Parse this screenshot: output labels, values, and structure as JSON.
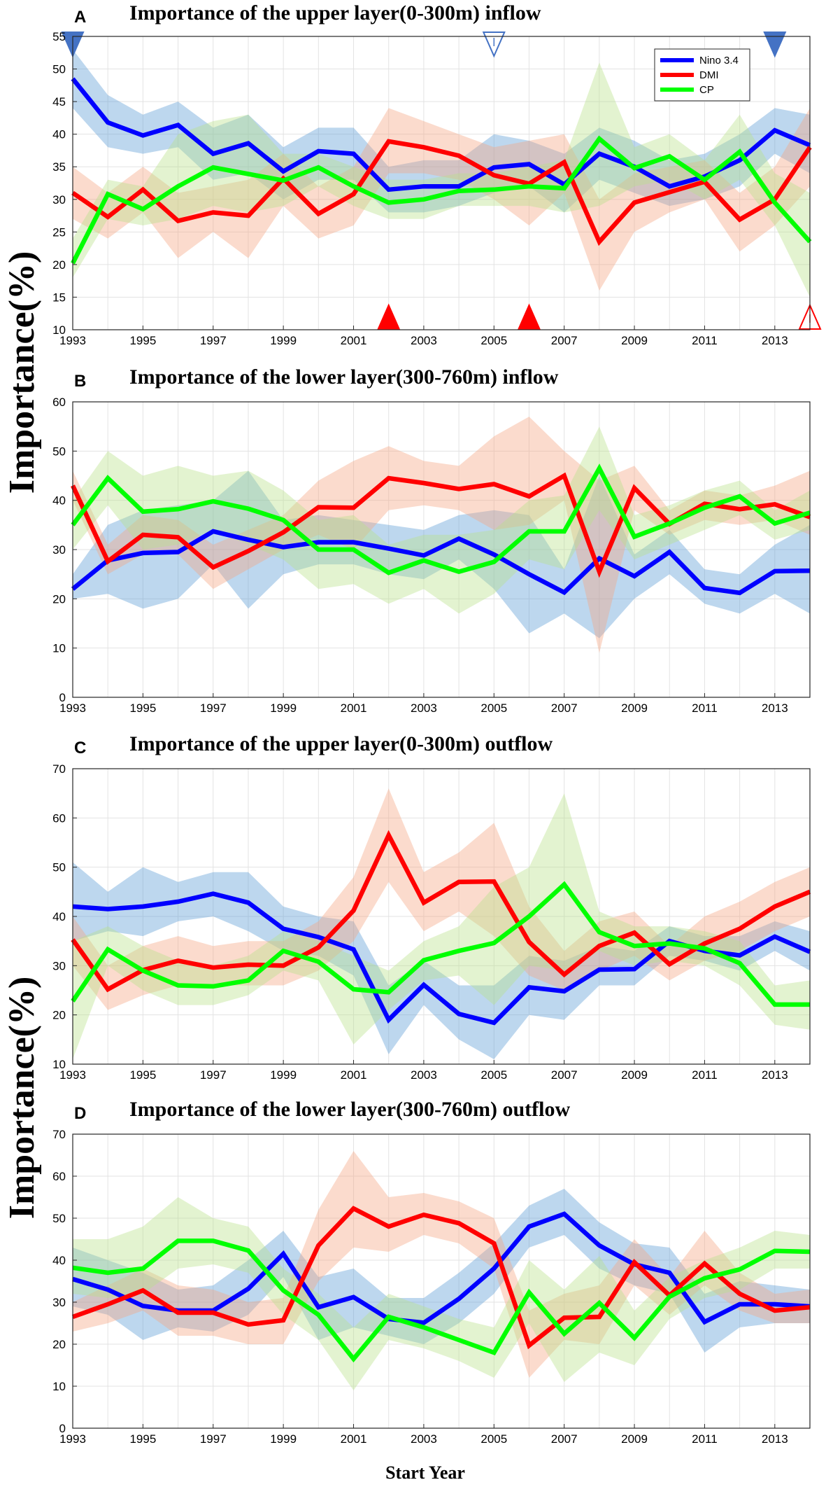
{
  "figure": {
    "xlabel": "Start Year",
    "ylabel": "Importance(%)"
  },
  "legend": [
    {
      "name": "Nino 3.4",
      "color": "#0000ff"
    },
    {
      "name": "DMI",
      "color": "#ff0000"
    },
    {
      "name": "CP",
      "color": "#00ff00"
    }
  ],
  "colors": {
    "nino": "#0000ff",
    "dmi": "#ff0000",
    "cp": "#00ff00",
    "nino_band": "#5b9bd5",
    "dmi_band": "#f4a582",
    "cp_band": "#b8e08a",
    "marker_blue": "#4472c4",
    "marker_red": "#ff0000"
  },
  "chart_data": [
    {
      "panel": "A",
      "type": "line",
      "title": "Importance of  the upper layer(0-300m) inflow",
      "x": [
        1993,
        1994,
        1995,
        1996,
        1997,
        1998,
        1999,
        2000,
        2001,
        2002,
        2003,
        2004,
        2005,
        2006,
        2007,
        2008,
        2009,
        2010,
        2011,
        2012,
        2013,
        2014
      ],
      "xticks": [
        1993,
        1995,
        1997,
        1999,
        2001,
        2003,
        2005,
        2007,
        2009,
        2011,
        2013
      ],
      "ylim": [
        10,
        55
      ],
      "yticks": [
        10,
        15,
        20,
        25,
        30,
        35,
        40,
        45,
        50,
        55
      ],
      "series": [
        {
          "name": "Nino 3.4",
          "values": [
            48.5,
            41.8,
            39.8,
            41.4,
            37.0,
            38.6,
            34.3,
            37.4,
            37.0,
            31.5,
            32.0,
            32.0,
            34.9,
            35.4,
            32.3,
            37.0,
            35.0,
            32.0,
            33.5,
            36.0,
            40.6,
            38.3
          ],
          "lower": [
            44,
            38,
            37,
            38,
            33,
            34,
            30,
            33,
            33,
            28,
            28,
            29,
            31,
            32,
            28,
            33,
            31,
            29,
            30,
            32,
            37,
            34
          ],
          "upper": [
            53,
            46,
            43,
            45,
            41,
            43,
            38,
            41,
            41,
            35,
            36,
            36,
            40,
            39,
            37,
            41,
            39,
            36,
            37,
            40,
            44,
            43
          ]
        },
        {
          "name": "DMI",
          "values": [
            31.0,
            27.3,
            31.5,
            26.7,
            28.0,
            27.5,
            33.2,
            27.8,
            30.8,
            38.9,
            38.0,
            36.7,
            33.7,
            32.4,
            35.7,
            23.5,
            29.5,
            31.1,
            32.7,
            26.9,
            30.0,
            38.0
          ],
          "lower": [
            27,
            24,
            28,
            21,
            25,
            21,
            29,
            24,
            26,
            34,
            34,
            33,
            30,
            26,
            31,
            16,
            25,
            28,
            30,
            22,
            26,
            32
          ],
          "upper": [
            35,
            31,
            35,
            31,
            32,
            33,
            37,
            32,
            35,
            44,
            42,
            40,
            38,
            39,
            40,
            30,
            34,
            35,
            36,
            31,
            35,
            44
          ]
        },
        {
          "name": "CP",
          "values": [
            20.2,
            30.8,
            28.5,
            32.0,
            34.9,
            33.9,
            32.9,
            34.9,
            32.0,
            29.5,
            30.0,
            31.3,
            31.5,
            32.0,
            31.7,
            39.3,
            34.8,
            36.6,
            33.0,
            37.3,
            29.5,
            23.5
          ],
          "lower": [
            18,
            27,
            26,
            27,
            29,
            28,
            29,
            32,
            29,
            27,
            27,
            29,
            29,
            29,
            28,
            29,
            32,
            33,
            30,
            33,
            26,
            15
          ],
          "upper": [
            24,
            33,
            32,
            40,
            42,
            43,
            37,
            37,
            35,
            33,
            33,
            34,
            34,
            35,
            36,
            51,
            38,
            40,
            36,
            43,
            34,
            31
          ]
        }
      ],
      "markers": [
        {
          "x": 1993,
          "dir": "down",
          "filled": true,
          "color": "#4472c4"
        },
        {
          "x": 2005,
          "dir": "down",
          "filled": false,
          "color": "#4472c4"
        },
        {
          "x": 2013,
          "dir": "down",
          "filled": true,
          "color": "#4472c4"
        },
        {
          "x": 2002,
          "dir": "up",
          "filled": true,
          "color": "#ff0000"
        },
        {
          "x": 2006,
          "dir": "up",
          "filled": true,
          "color": "#ff0000"
        },
        {
          "x": 2014,
          "dir": "up",
          "filled": false,
          "color": "#ff0000"
        }
      ]
    },
    {
      "panel": "B",
      "type": "line",
      "title": "Importance of the lower layer(300-760m) inflow",
      "x": [
        1993,
        1994,
        1995,
        1996,
        1997,
        1998,
        1999,
        2000,
        2001,
        2002,
        2003,
        2004,
        2005,
        2006,
        2007,
        2008,
        2009,
        2010,
        2011,
        2012,
        2013,
        2014
      ],
      "xticks": [
        1993,
        1995,
        1997,
        1999,
        2001,
        2003,
        2005,
        2007,
        2009,
        2011,
        2013
      ],
      "ylim": [
        0,
        60
      ],
      "yticks": [
        0,
        10,
        20,
        30,
        40,
        50,
        60
      ],
      "series": [
        {
          "name": "Nino 3.4",
          "values": [
            22.0,
            27.8,
            29.3,
            29.5,
            33.7,
            32.0,
            30.5,
            31.5,
            31.5,
            30.2,
            28.8,
            32.2,
            29.0,
            25.0,
            21.3,
            28.2,
            24.6,
            29.5,
            22.2,
            21.2,
            25.6,
            25.7
          ],
          "lower": [
            20,
            21,
            18,
            20,
            27,
            18,
            25,
            27,
            27,
            25,
            24,
            28,
            22,
            13,
            17,
            12,
            20,
            25,
            19,
            17,
            21,
            17
          ],
          "upper": [
            25,
            35,
            38,
            39,
            40,
            46,
            36,
            37,
            36,
            35,
            34,
            37,
            38,
            37,
            26,
            45,
            29,
            34,
            26,
            25,
            31,
            35
          ]
        },
        {
          "name": "DMI",
          "values": [
            43.0,
            27.6,
            33.0,
            32.5,
            26.4,
            29.7,
            33.5,
            38.6,
            38.5,
            44.5,
            43.5,
            42.3,
            43.3,
            40.8,
            45.0,
            25.5,
            42.5,
            35.2,
            39.3,
            38.2,
            39.2,
            36.6
          ],
          "lower": [
            40,
            25,
            29,
            29,
            22,
            26,
            30,
            33,
            30,
            38,
            39,
            38,
            34,
            35,
            40,
            9,
            38,
            33,
            36,
            35,
            36,
            33
          ],
          "upper": [
            46,
            31,
            37,
            36,
            31,
            34,
            37,
            44,
            48,
            51,
            48,
            47,
            53,
            57,
            50,
            44,
            47,
            38,
            42,
            41,
            43,
            46
          ]
        },
        {
          "name": "CP",
          "values": [
            35.0,
            44.5,
            37.7,
            38.2,
            39.8,
            38.3,
            36.0,
            30.0,
            30.0,
            25.3,
            27.8,
            25.5,
            27.5,
            33.7,
            33.7,
            46.5,
            32.6,
            35.3,
            38.5,
            40.8,
            35.3,
            37.5
          ],
          "lower": [
            30,
            39,
            30,
            31,
            34,
            31,
            28,
            22,
            23,
            19,
            22,
            17,
            21,
            28,
            26,
            38,
            28,
            31,
            34,
            37,
            32,
            34
          ],
          "upper": [
            40,
            50,
            45,
            47,
            45,
            46,
            42,
            36,
            37,
            31,
            33,
            33,
            34,
            40,
            41,
            55,
            37,
            39,
            42,
            44,
            38,
            42
          ]
        }
      ],
      "markers": []
    },
    {
      "panel": "C",
      "type": "line",
      "title": "Importance of  the upper layer(0-300m) outflow",
      "x": [
        1993,
        1994,
        1995,
        1996,
        1997,
        1998,
        1999,
        2000,
        2001,
        2002,
        2003,
        2004,
        2005,
        2006,
        2007,
        2008,
        2009,
        2010,
        2011,
        2012,
        2013,
        2014
      ],
      "xticks": [
        1993,
        1995,
        1997,
        1999,
        2001,
        2003,
        2005,
        2007,
        2009,
        2011,
        2013
      ],
      "ylim": [
        10,
        70
      ],
      "yticks": [
        10,
        20,
        30,
        40,
        50,
        60,
        70
      ],
      "series": [
        {
          "name": "Nino 3.4",
          "values": [
            42.0,
            41.5,
            42.0,
            43.0,
            44.6,
            42.8,
            37.5,
            35.8,
            33.3,
            19.0,
            26.1,
            20.2,
            18.4,
            25.6,
            24.8,
            29.2,
            29.3,
            35.0,
            33.0,
            32.1,
            35.9,
            32.8
          ],
          "lower": [
            35,
            37,
            36,
            39,
            40,
            37,
            33,
            32,
            28,
            12,
            22,
            15,
            11,
            20,
            19,
            26,
            26,
            32,
            31,
            29,
            33,
            29
          ],
          "upper": [
            51,
            45,
            50,
            47,
            49,
            49,
            42,
            40,
            39,
            26,
            31,
            26,
            26,
            32,
            31,
            34,
            33,
            38,
            36,
            36,
            39,
            37
          ]
        },
        {
          "name": "DMI",
          "values": [
            35.3,
            25.2,
            29.1,
            31.0,
            29.6,
            30.2,
            30.0,
            33.7,
            41.2,
            56.5,
            42.8,
            47.0,
            47.1,
            34.8,
            28.2,
            34.0,
            36.7,
            30.3,
            34.5,
            37.5,
            42.0,
            45.0
          ],
          "lower": [
            30,
            21,
            24,
            26,
            26,
            26,
            26,
            29,
            35,
            47,
            37,
            41,
            36,
            28,
            25,
            29,
            32,
            27,
            31,
            33,
            37,
            40
          ],
          "upper": [
            40,
            30,
            34,
            36,
            34,
            35,
            35,
            39,
            48,
            66,
            49,
            53,
            59,
            42,
            33,
            39,
            41,
            34,
            40,
            43,
            47,
            50
          ]
        },
        {
          "name": "CP",
          "values": [
            22.8,
            33.3,
            29.0,
            26.0,
            25.8,
            27.0,
            33.0,
            30.8,
            25.2,
            24.6,
            31.1,
            33.0,
            34.6,
            40.0,
            46.5,
            36.8,
            34.0,
            34.5,
            33.5,
            30.5,
            22.1,
            22.1
          ],
          "lower": [
            11,
            30,
            25,
            22,
            22,
            24,
            29,
            27,
            14,
            21,
            27,
            28,
            22,
            30,
            29,
            33,
            30,
            31,
            30,
            26,
            18,
            17
          ],
          "upper": [
            35,
            38,
            34,
            31,
            30,
            32,
            37,
            35,
            32,
            29,
            35,
            38,
            46,
            50,
            65,
            41,
            38,
            38,
            37,
            35,
            26,
            27
          ]
        }
      ],
      "markers": []
    },
    {
      "panel": "D",
      "type": "line",
      "title": "Importance of the lower layer(300-760m) outflow",
      "x": [
        1993,
        1994,
        1995,
        1996,
        1997,
        1998,
        1999,
        2000,
        2001,
        2002,
        2003,
        2004,
        2005,
        2006,
        2007,
        2008,
        2009,
        2010,
        2011,
        2012,
        2013,
        2014
      ],
      "xticks": [
        1993,
        1995,
        1997,
        1999,
        2001,
        2003,
        2005,
        2007,
        2009,
        2011,
        2013
      ],
      "ylim": [
        0,
        70
      ],
      "yticks": [
        0,
        10,
        20,
        30,
        40,
        50,
        60,
        70
      ],
      "series": [
        {
          "name": "Nino 3.4",
          "values": [
            35.5,
            33.0,
            29.1,
            28.0,
            28.0,
            33.2,
            41.5,
            28.8,
            31.2,
            26.0,
            25.1,
            30.8,
            38.0,
            48.0,
            51.0,
            43.5,
            39.0,
            37.0,
            25.3,
            29.5,
            29.5,
            29.0
          ],
          "lower": [
            29,
            27,
            21,
            24,
            23,
            27,
            36,
            21,
            24,
            22,
            20,
            25,
            32,
            43,
            46,
            38,
            34,
            32,
            18,
            24,
            25,
            25
          ],
          "upper": [
            43,
            40,
            37,
            33,
            34,
            40,
            47,
            36,
            38,
            31,
            31,
            37,
            44,
            53,
            57,
            49,
            44,
            43,
            32,
            35,
            34,
            33
          ]
        },
        {
          "name": "DMI",
          "values": [
            26.5,
            29.5,
            32.8,
            27.5,
            27.5,
            24.7,
            25.7,
            43.5,
            52.3,
            48.0,
            50.8,
            48.8,
            44.0,
            19.7,
            26.3,
            26.5,
            39.5,
            31.6,
            39.2,
            32.0,
            28.0,
            28.8
          ],
          "lower": [
            23,
            25,
            28,
            22,
            22,
            20,
            20,
            35,
            43,
            42,
            46,
            44,
            38,
            12,
            21,
            20,
            34,
            27,
            34,
            28,
            25,
            25
          ],
          "upper": [
            30,
            34,
            38,
            34,
            33,
            30,
            31,
            52,
            66,
            55,
            56,
            54,
            50,
            28,
            32,
            34,
            45,
            36,
            47,
            37,
            32,
            33
          ]
        },
        {
          "name": "CP",
          "values": [
            38.2,
            37.0,
            38.0,
            44.6,
            44.6,
            42.3,
            32.8,
            27.0,
            16.5,
            26.5,
            24.0,
            21.0,
            18.0,
            32.3,
            22.5,
            29.8,
            21.5,
            31.3,
            35.7,
            37.8,
            42.2,
            42.0
          ],
          "lower": [
            32,
            31,
            32,
            38,
            39,
            37,
            27,
            21,
            9,
            21,
            19,
            16,
            12,
            25,
            11,
            18,
            15,
            26,
            31,
            33,
            38,
            38
          ],
          "upper": [
            45,
            45,
            48,
            55,
            50,
            48,
            38,
            32,
            24,
            32,
            29,
            26,
            24,
            40,
            33,
            41,
            28,
            36,
            40,
            43,
            47,
            46
          ]
        }
      ],
      "markers": []
    }
  ]
}
